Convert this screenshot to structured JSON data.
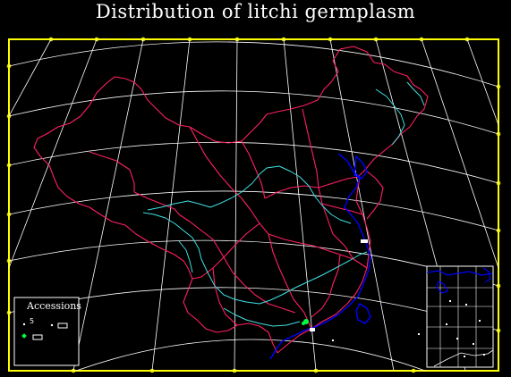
{
  "title": "Distribution  of litchi germplasm",
  "legend": {
    "title": "Accessions",
    "count": "5"
  },
  "colors": {
    "background": "#000000",
    "frame": "#ffff00",
    "graticule": "#ffffff",
    "provincial_border": "#ff2060",
    "river": "#40e0e0",
    "coastline": "#0000ff",
    "accession_marker": "#00ff40"
  },
  "layers": [
    "graticule",
    "provincial-border",
    "river",
    "coastline",
    "south-china-sea-inset",
    "accession-points"
  ]
}
